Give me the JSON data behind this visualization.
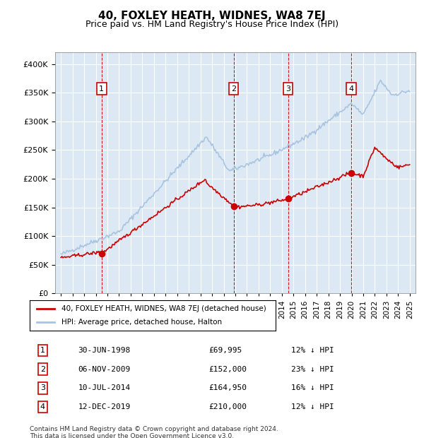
{
  "title": "40, FOXLEY HEATH, WIDNES, WA8 7EJ",
  "subtitle": "Price paid vs. HM Land Registry's House Price Index (HPI)",
  "legend_line1": "40, FOXLEY HEATH, WIDNES, WA8 7EJ (detached house)",
  "legend_line2": "HPI: Average price, detached house, Halton",
  "footnote1": "Contains HM Land Registry data © Crown copyright and database right 2024.",
  "footnote2": "This data is licensed under the Open Government Licence v3.0.",
  "transactions": [
    {
      "num": 1,
      "date": "30-JUN-1998",
      "price": 69995,
      "pct": "12% ↓ HPI",
      "year": 1998.5
    },
    {
      "num": 2,
      "date": "06-NOV-2009",
      "price": 152000,
      "pct": "23% ↓ HPI",
      "year": 2009.85
    },
    {
      "num": 3,
      "date": "10-JUL-2014",
      "price": 164950,
      "pct": "16% ↓ HPI",
      "year": 2014.53
    },
    {
      "num": 4,
      "date": "12-DEC-2019",
      "price": 210000,
      "pct": "12% ↓ HPI",
      "year": 2019.95
    }
  ],
  "hpi_color": "#a8c4e0",
  "price_color": "#cc0000",
  "vline_color": "#cc0000",
  "box_color": "#cc0000",
  "ylim": [
    0,
    420000
  ],
  "xlim_start": 1994.5,
  "xlim_end": 2025.5,
  "background_color": "#dce9f5"
}
